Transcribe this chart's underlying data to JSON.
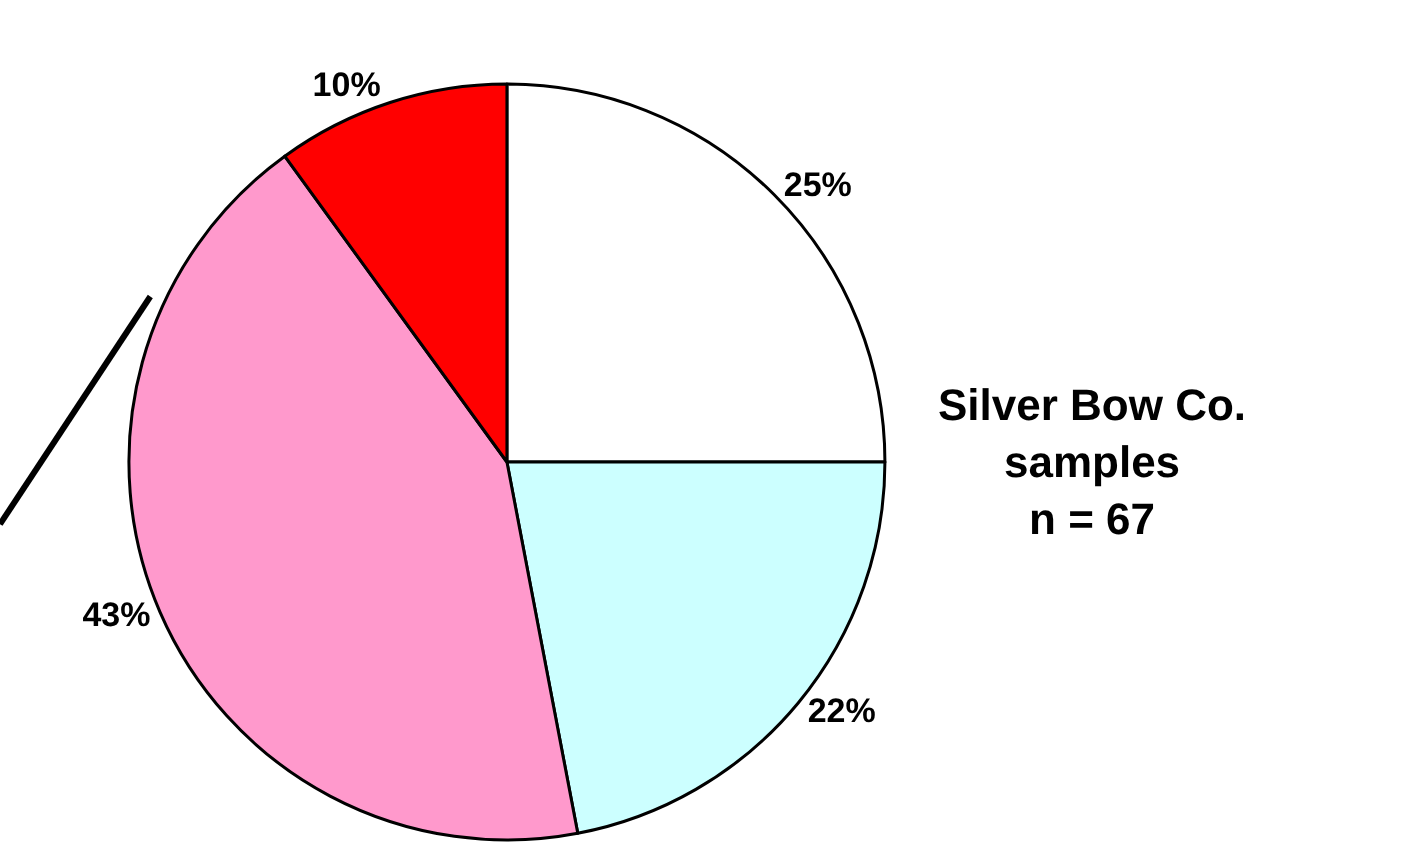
{
  "chart_data": {
    "type": "pie",
    "categories": [
      null,
      null,
      null,
      null
    ],
    "values": [
      25,
      22,
      43,
      10
    ],
    "colors": [
      "#ffffff",
      "#ccffff",
      "#ff99cc",
      "#ff0000"
    ],
    "value_labels": [
      "25%",
      "22%",
      "43%",
      "10%"
    ],
    "annotations": [
      "Silver Bow Co.\nsamples\nn = 67"
    ],
    "legend": false
  }
}
